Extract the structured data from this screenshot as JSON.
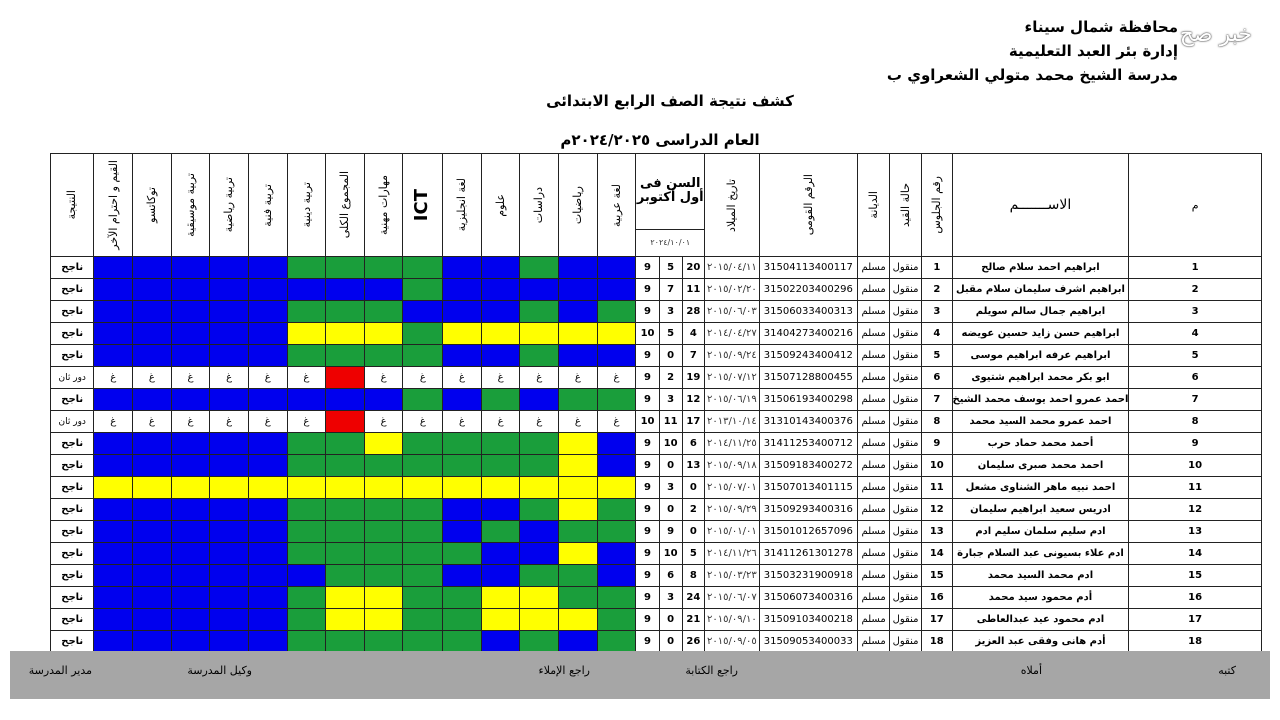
{
  "header": {
    "line1": "محافظة شمال سيناء",
    "line2": "إدارة بئر العبد التعليمية",
    "line3": "مدرسة الشيخ محمد متولي الشعراوي ب",
    "title": "كشف نتيجة الصف الرابع الابتدائى",
    "year": "العام الدراسى ٢٠٢٤/٢٠٢٥م",
    "watermark": "خبر صح"
  },
  "columns": {
    "m": "م",
    "name": "الاســـــــم",
    "seat": "رقم الجلوس",
    "status": "حالة القيد",
    "religion": "الديانة",
    "nid": "الرقم القومى",
    "dob": "تاريخ الميلاد",
    "age_title": "السن فى أول أكتوبر",
    "age_date": "٢٠٢٤/١٠/٠١",
    "subjects": [
      "لغة عربية",
      "رياضيات",
      "دراسات",
      "علوم",
      "لغة انجليزية",
      "ICT",
      "مهارات مهنية",
      "المجموع الكلى",
      "تربية دينية",
      "تربية فنية",
      "تربية رياضية",
      "تربية موسيقية",
      "توكاتسو",
      "القيم و احترام الآخر"
    ],
    "result": "النتيجة"
  },
  "students": [
    {
      "m": "1",
      "name": "ابراهيم احمد سلام صالح",
      "seat": "1",
      "status": "منقول",
      "religion": "مسلم",
      "nid": "31504113400117",
      "dob": "٢٠١٥/٠٤/١١",
      "age": [
        "9",
        "5",
        "20"
      ],
      "cells": "BBGBBGGGGBBBBB",
      "result": "ناجح"
    },
    {
      "m": "2",
      "name": "ابراهيم اشرف سليمان سلام مقبل",
      "seat": "2",
      "status": "منقول",
      "religion": "مسلم",
      "nid": "31502203400296",
      "dob": "٢٠١٥/٠٢/٢٠",
      "age": [
        "9",
        "7",
        "11"
      ],
      "cells": "BBBBBGBBBBBBBB",
      "result": "ناجح"
    },
    {
      "m": "3",
      "name": "ابراهيم جمال سالم سويلم",
      "seat": "3",
      "status": "منقول",
      "religion": "مسلم",
      "nid": "31506033400313",
      "dob": "٢٠١٥/٠٦/٠٣",
      "age": [
        "9",
        "3",
        "28"
      ],
      "cells": "GBGBBBGGGBBBBB",
      "result": "ناجح"
    },
    {
      "m": "4",
      "name": "ابراهيم حسن زايد حسين عويضه",
      "seat": "4",
      "status": "منقول",
      "religion": "مسلم",
      "nid": "31404273400216",
      "dob": "٢٠١٤/٠٤/٢٧",
      "age": [
        "10",
        "5",
        "4"
      ],
      "cells": "YYYYYGYYYBBBBB",
      "result": "ناجح"
    },
    {
      "m": "5",
      "name": "ابراهيم عرفه ابراهيم موسى",
      "seat": "5",
      "status": "منقول",
      "religion": "مسلم",
      "nid": "31509243400412",
      "dob": "٢٠١٥/٠٩/٢٤",
      "age": [
        "9",
        "0",
        "7"
      ],
      "cells": "BBGBBGGGGBBBBB",
      "result": "ناجح"
    },
    {
      "m": "6",
      "name": "ابو بكر محمد ابراهيم شتيوى",
      "seat": "6",
      "status": "منقول",
      "religion": "مسلم",
      "nid": "31507128800455",
      "dob": "٢٠١٥/٠٧/١٢",
      "age": [
        "9",
        "2",
        "19"
      ],
      "cells": "WWWWWWWRWWWWWW",
      "fill": "غ",
      "result": "دور ثان"
    },
    {
      "m": "7",
      "name": "احمد عمرو احمد يوسف محمد الشيخ",
      "seat": "7",
      "status": "منقول",
      "religion": "مسلم",
      "nid": "31506193400298",
      "dob": "٢٠١٥/٠٦/١٩",
      "age": [
        "9",
        "3",
        "12"
      ],
      "cells": "GGBGBGBBBBBBBB",
      "result": "ناجح"
    },
    {
      "m": "8",
      "name": "احمد عمرو محمد السيد محمد",
      "seat": "8",
      "status": "منقول",
      "religion": "مسلم",
      "nid": "31310143400376",
      "dob": "٢٠١٣/١٠/١٤",
      "age": [
        "10",
        "11",
        "17"
      ],
      "cells": "WWWWWWWRWWWWWW",
      "fill": "غ",
      "result": "دور ثان"
    },
    {
      "m": "9",
      "name": "أحمد محمد حماد حرب",
      "seat": "9",
      "status": "منقول",
      "religion": "مسلم",
      "nid": "31411253400712",
      "dob": "٢٠١٤/١١/٢٥",
      "age": [
        "9",
        "10",
        "6"
      ],
      "cells": "BYGGGGYGGBBBBB",
      "result": "ناجح"
    },
    {
      "m": "10",
      "name": "احمد محمد صبرى سليمان",
      "seat": "10",
      "status": "منقول",
      "religion": "مسلم",
      "nid": "31509183400272",
      "dob": "٢٠١٥/٠٩/١٨",
      "age": [
        "9",
        "0",
        "13"
      ],
      "cells": "BYGGGGGGGBBBBB",
      "result": "ناجح"
    },
    {
      "m": "11",
      "name": "احمد نبيه ماهر الشناوى مشعل",
      "seat": "11",
      "status": "منقول",
      "religion": "مسلم",
      "nid": "31507013401115",
      "dob": "٢٠١٥/٠٧/٠١",
      "age": [
        "9",
        "3",
        "0"
      ],
      "cells": "YYYYYYYYYYYYYY",
      "result": "ناجح"
    },
    {
      "m": "12",
      "name": "ادريس سعيد ابراهيم سليمان",
      "seat": "12",
      "status": "منقول",
      "religion": "مسلم",
      "nid": "31509293400316",
      "dob": "٢٠١٥/٠٩/٢٩",
      "age": [
        "9",
        "0",
        "2"
      ],
      "cells": "GYGBBGGGGBBBBB",
      "result": "ناجح"
    },
    {
      "m": "13",
      "name": "ادم سليم سلمان سليم ادم",
      "seat": "13",
      "status": "منقول",
      "religion": "مسلم",
      "nid": "31501012657096",
      "dob": "٢٠١٥/٠١/٠١",
      "age": [
        "9",
        "9",
        "0"
      ],
      "cells": "GGBGBGGGGBBBBB",
      "result": "ناجح"
    },
    {
      "m": "14",
      "name": "ادم علاء بسيونى عبد السلام جبارة",
      "seat": "14",
      "status": "منقول",
      "religion": "مسلم",
      "nid": "31411261301278",
      "dob": "٢٠١٤/١١/٢٦",
      "age": [
        "9",
        "10",
        "5"
      ],
      "cells": "BYBBGGGGGBBBBB",
      "result": "ناجح"
    },
    {
      "m": "15",
      "name": "ادم محمد السيد محمد",
      "seat": "15",
      "status": "منقول",
      "religion": "مسلم",
      "nid": "31503231900918",
      "dob": "٢٠١٥/٠٣/٢٣",
      "age": [
        "9",
        "6",
        "8"
      ],
      "cells": "BGGBBGGGBBBBBB",
      "result": "ناجح"
    },
    {
      "m": "16",
      "name": "أدم محمود سيد محمد",
      "seat": "16",
      "status": "منقول",
      "religion": "مسلم",
      "nid": "31506073400316",
      "dob": "٢٠١٥/٠٦/٠٧",
      "age": [
        "9",
        "3",
        "24"
      ],
      "cells": "GGYYGGYYGBBBBB",
      "result": "ناجح"
    },
    {
      "m": "17",
      "name": "ادم محمود عيد عبدالعاطى",
      "seat": "17",
      "status": "منقول",
      "religion": "مسلم",
      "nid": "31509103400218",
      "dob": "٢٠١٥/٠٩/١٠",
      "age": [
        "9",
        "0",
        "21"
      ],
      "cells": "GYYYGGYYGBBBBB",
      "result": "ناجح"
    },
    {
      "m": "18",
      "name": "أدم هانى وفقى عبد العزيز",
      "seat": "18",
      "status": "منقول",
      "religion": "مسلم",
      "nid": "31509053400033",
      "dob": "٢٠١٥/٠٩/٠٥",
      "age": [
        "9",
        "0",
        "26"
      ],
      "cells": "GBGBGGGGGBBBBB",
      "result": "ناجح"
    }
  ],
  "footer": {
    "k1": "كتبه",
    "k2": "أملاه",
    "k3": "راجع الكتابة",
    "k4": "راجع الإملاء",
    "k5": "وكيل المدرسة",
    "k6": "مدير المدرسة"
  },
  "colors": {
    "blue": "#0000ee",
    "green": "#1a9e3b",
    "yellow": "#ffff00",
    "red": "#ee0000",
    "footer": "#a6a6a6"
  }
}
